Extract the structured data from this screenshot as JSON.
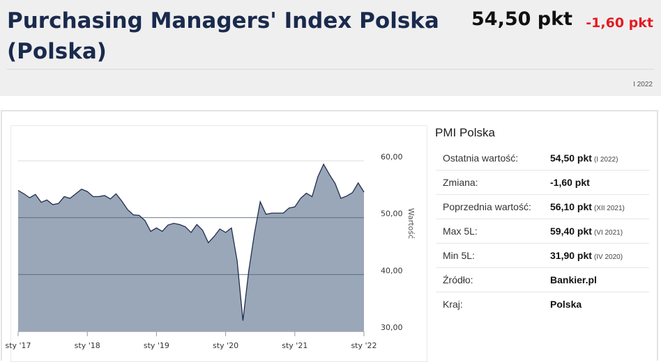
{
  "header": {
    "title": "Purchasing Managers' Index Polska (Polska)",
    "value": "54,50 pkt",
    "change": "-1,60 pkt",
    "date": "I 2022"
  },
  "colors": {
    "title": "#1a2a4d",
    "change": "#e31b23",
    "area_fill": "#9aa7b8",
    "line": "#1e2c4e"
  },
  "sidebar": {
    "title": "PMI Polska",
    "rows": [
      {
        "label": "Ostatnia wartość:",
        "value": "54,50 pkt",
        "note": "(I 2022)"
      },
      {
        "label": "Zmiana:",
        "value": "-1,60 pkt",
        "note": ""
      },
      {
        "label": "Poprzednia wartość:",
        "value": "56,10 pkt",
        "note": "(XII 2021)"
      },
      {
        "label": "Max 5L:",
        "value": "59,40 pkt",
        "note": "(VI 2021)"
      },
      {
        "label": "Min 5L:",
        "value": "31,90 pkt",
        "note": "(IV 2020)"
      },
      {
        "label": "Źródło:",
        "value": "Bankier.pl",
        "note": ""
      },
      {
        "label": "Kraj:",
        "value": "Polska",
        "note": ""
      }
    ]
  },
  "chart_data": {
    "type": "area",
    "title": "",
    "xlabel": "",
    "ylabel": "Wartość",
    "ylim": [
      30,
      60
    ],
    "grid": true,
    "yticks": [
      60,
      50,
      40,
      30
    ],
    "ytick_labels": [
      "60,00",
      "50,00",
      "40,00",
      "30,00"
    ],
    "xtick_labels": [
      "sty '17",
      "sty '18",
      "sty '19",
      "sty '20",
      "sty '21",
      "sty '22"
    ],
    "x": [
      "2017-01",
      "2017-02",
      "2017-03",
      "2017-04",
      "2017-05",
      "2017-06",
      "2017-07",
      "2017-08",
      "2017-09",
      "2017-10",
      "2017-11",
      "2017-12",
      "2018-01",
      "2018-02",
      "2018-03",
      "2018-04",
      "2018-05",
      "2018-06",
      "2018-07",
      "2018-08",
      "2018-09",
      "2018-10",
      "2018-11",
      "2018-12",
      "2019-01",
      "2019-02",
      "2019-03",
      "2019-04",
      "2019-05",
      "2019-06",
      "2019-07",
      "2019-08",
      "2019-09",
      "2019-10",
      "2019-11",
      "2019-12",
      "2020-01",
      "2020-02",
      "2020-03",
      "2020-04",
      "2020-05",
      "2020-06",
      "2020-07",
      "2020-08",
      "2020-09",
      "2020-10",
      "2020-11",
      "2020-12",
      "2021-01",
      "2021-02",
      "2021-03",
      "2021-04",
      "2021-05",
      "2021-06",
      "2021-07",
      "2021-08",
      "2021-09",
      "2021-10",
      "2021-11",
      "2021-12",
      "2022-01"
    ],
    "series": [
      {
        "values": [
          54.8,
          54.2,
          53.5,
          54.1,
          52.7,
          53.1,
          52.3,
          52.5,
          53.7,
          53.4,
          54.2,
          55.0,
          54.6,
          53.7,
          53.7,
          53.9,
          53.3,
          54.2,
          52.9,
          51.4,
          50.5,
          50.4,
          49.5,
          47.6,
          48.2,
          47.6,
          48.7,
          49.0,
          48.8,
          48.4,
          47.4,
          48.8,
          47.8,
          45.6,
          46.7,
          48.0,
          47.4,
          48.2,
          42.4,
          31.9,
          40.6,
          47.2,
          52.8,
          50.6,
          50.8,
          50.8,
          50.8,
          51.7,
          51.9,
          53.4,
          54.3,
          53.7,
          57.2,
          59.4,
          57.6,
          56.0,
          53.4,
          53.8,
          54.4,
          56.1,
          54.5
        ]
      }
    ]
  }
}
